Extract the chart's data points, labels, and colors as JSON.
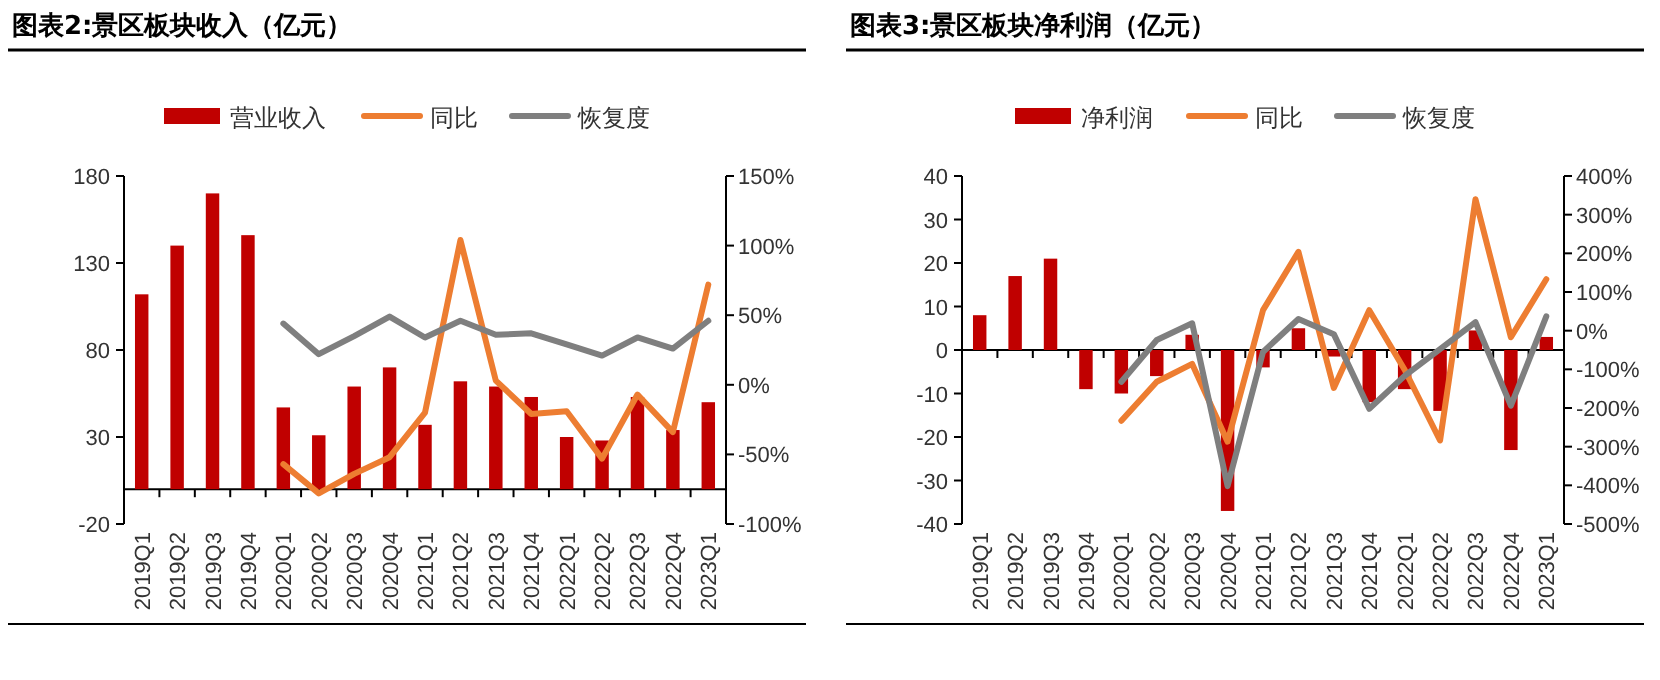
{
  "chart_data": [
    {
      "type": "bar",
      "title": "图表2:景区板块收入（亿元）",
      "legend": "top",
      "categories": [
        "2019Q1",
        "2019Q2",
        "2019Q3",
        "2019Q4",
        "2020Q1",
        "2020Q2",
        "2020Q3",
        "2020Q4",
        "2021Q1",
        "2021Q2",
        "2021Q3",
        "2021Q4",
        "2022Q1",
        "2022Q2",
        "2022Q3",
        "2022Q4",
        "2023Q1"
      ],
      "series": [
        {
          "name": "营业收入",
          "type": "bar",
          "color": "#c00000",
          "values": [
            112,
            140,
            170,
            146,
            47,
            31,
            59,
            70,
            37,
            62,
            59,
            53,
            30,
            28,
            53,
            34,
            50
          ]
        },
        {
          "name": "同比",
          "type": "line",
          "axis": "y2",
          "color": "#ed7d31",
          "values": [
            null,
            null,
            null,
            null,
            -57,
            -78,
            -64,
            -52,
            -20,
            104,
            3,
            -21,
            -19,
            -53,
            -7,
            -34,
            72
          ]
        },
        {
          "name": "恢复度",
          "type": "line",
          "axis": "y2",
          "color": "#7f7f7f",
          "values": [
            null,
            null,
            null,
            null,
            44,
            22,
            35,
            49,
            34,
            46,
            36,
            37,
            29,
            21,
            34,
            26,
            46
          ]
        }
      ],
      "ylim": [
        -20,
        180
      ],
      "yticks": [
        -20,
        30,
        80,
        130,
        180
      ],
      "y2lim": [
        -100,
        150
      ],
      "y2ticks": [
        {
          "value": -100,
          "label": "-100%"
        },
        {
          "value": -50,
          "label": "-50%"
        },
        {
          "value": 0,
          "label": "0%"
        },
        {
          "value": 50,
          "label": "50%"
        },
        {
          "value": 100,
          "label": "100%"
        },
        {
          "value": 150,
          "label": "150%"
        }
      ]
    },
    {
      "type": "bar",
      "title": "图表3:景区板块净利润（亿元）",
      "legend": "top",
      "categories": [
        "2019Q1",
        "2019Q2",
        "2019Q3",
        "2019Q4",
        "2020Q1",
        "2020Q2",
        "2020Q3",
        "2020Q4",
        "2021Q1",
        "2021Q2",
        "2021Q3",
        "2021Q4",
        "2022Q1",
        "2022Q2",
        "2022Q3",
        "2022Q4",
        "2023Q1"
      ],
      "series": [
        {
          "name": "净利润",
          "type": "bar",
          "color": "#c00000",
          "values": [
            8,
            17,
            21,
            -9,
            -10,
            -6,
            3.5,
            -37,
            -4,
            5,
            -1.5,
            -12,
            -9,
            -14,
            4.5,
            -23,
            3
          ]
        },
        {
          "name": "同比",
          "type": "line",
          "axis": "y2",
          "color": "#ed7d31",
          "values": [
            null,
            null,
            null,
            null,
            -233,
            -132,
            -86,
            -287,
            53,
            204,
            -148,
            53,
            -101,
            -284,
            340,
            -17,
            133
          ]
        },
        {
          "name": "恢复度",
          "type": "line",
          "axis": "y2",
          "color": "#7f7f7f",
          "values": [
            null,
            null,
            null,
            null,
            -132,
            -24,
            19,
            -402,
            -55,
            30,
            -9,
            -202,
            -117,
            -48,
            22,
            -194,
            37
          ]
        }
      ],
      "ylim": [
        -40,
        40
      ],
      "yticks": [
        -40,
        -30,
        -20,
        -10,
        0,
        10,
        20,
        30,
        40
      ],
      "y2lim": [
        -500,
        400
      ],
      "y2ticks": [
        {
          "value": -500,
          "label": "-500%"
        },
        {
          "value": -400,
          "label": "-400%"
        },
        {
          "value": -300,
          "label": "-300%"
        },
        {
          "value": -200,
          "label": "-200%"
        },
        {
          "value": -100,
          "label": "-100%"
        },
        {
          "value": 0,
          "label": "0%"
        },
        {
          "value": 100,
          "label": "100%"
        },
        {
          "value": 200,
          "label": "200%"
        },
        {
          "value": 300,
          "label": "300%"
        },
        {
          "value": 400,
          "label": "400%"
        }
      ]
    }
  ]
}
